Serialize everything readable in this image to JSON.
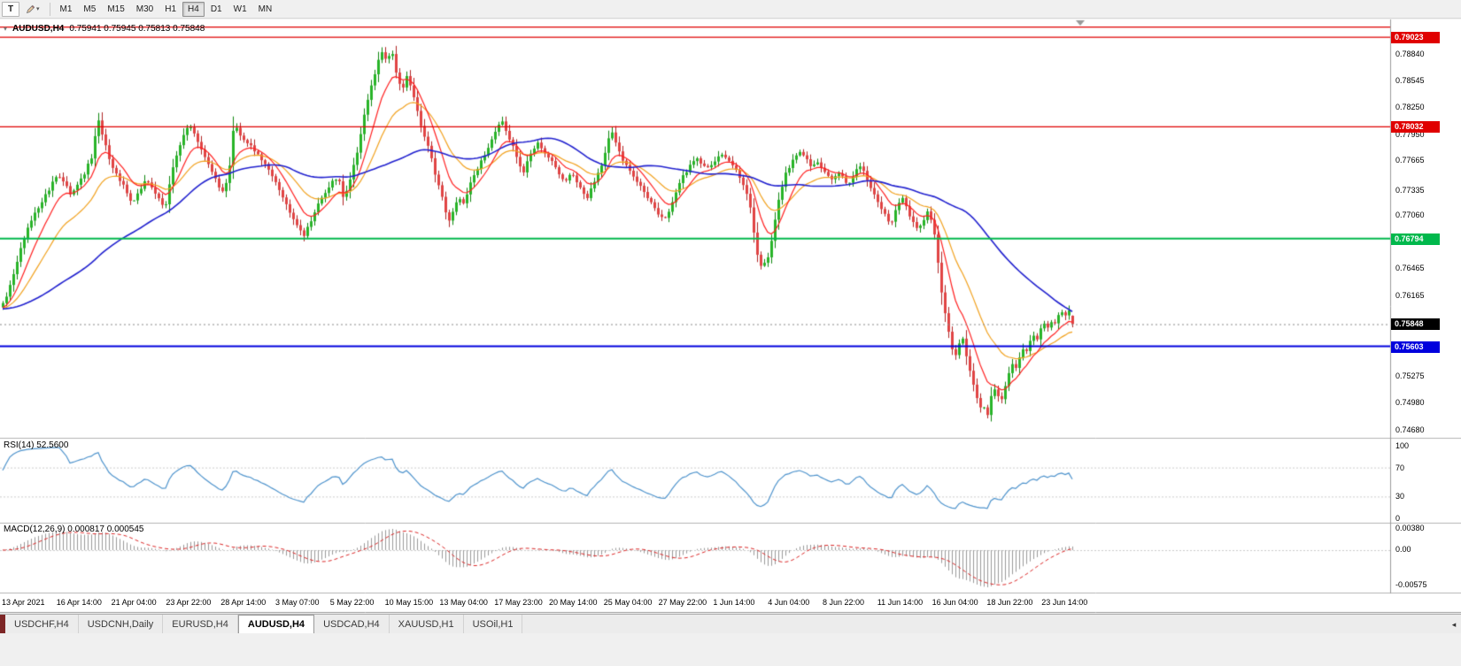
{
  "icons": {
    "dropdown_caret": "▾",
    "title_caret": "▾",
    "tab_scroll_right": "◂"
  },
  "toolbar": {
    "chart_tool_label": "T",
    "timeframes": [
      "M1",
      "M5",
      "M15",
      "M30",
      "H1",
      "H4",
      "D1",
      "W1",
      "MN"
    ],
    "active_timeframe": "H4"
  },
  "chart": {
    "symbol_period": "AUDUSD,H4",
    "ohlc": "0.75941 0.75945 0.75813 0.75848",
    "price_axis_labels": [
      "0.78840",
      "0.78545",
      "0.78250",
      "0.77950",
      "0.77665",
      "0.77335",
      "0.77060",
      "0.76770",
      "0.76465",
      "0.76165",
      "0.75870",
      "0.75575",
      "0.75275",
      "0.74980",
      "0.74680"
    ],
    "time_axis_labels": [
      "13 Apr 2021",
      "16 Apr 14:00",
      "21 Apr 04:00",
      "23 Apr 22:00",
      "28 Apr 14:00",
      "3 May 07:00",
      "5 May 22:00",
      "10 May 15:00",
      "13 May 04:00",
      "17 May 23:00",
      "20 May 14:00",
      "25 May 04:00",
      "27 May 22:00",
      "1 Jun 14:00",
      "4 Jun 04:00",
      "8 Jun 22:00",
      "11 Jun 14:00",
      "16 Jun 04:00",
      "18 Jun 22:00",
      "23 Jun 14:00"
    ],
    "hlines": [
      {
        "price": 0.79135,
        "color": "#e00000",
        "width": 1.2,
        "label": ""
      },
      {
        "price": 0.79023,
        "color": "#e00000",
        "width": 1.2,
        "label": "0.79023"
      },
      {
        "price": 0.78032,
        "color": "#e00000",
        "width": 1.2,
        "label": "0.78032"
      },
      {
        "price": 0.76794,
        "color": "#00b84c",
        "width": 2,
        "label": "0.76794"
      },
      {
        "price": 0.75603,
        "color": "#0000dd",
        "width": 2,
        "label": "0.75603"
      }
    ],
    "current_price": {
      "value": 0.75848,
      "label": "0.75848",
      "tag_color": "#000000"
    },
    "colors": {
      "up": "#28b428",
      "down": "#e14444",
      "ma_fast": "#ff2020",
      "ma_mid": "#f2a21f",
      "ma_slow": "#2121cf"
    }
  },
  "rsi": {
    "header": "RSI(14) 52.5600",
    "axis_labels": [
      "100",
      "70",
      "30",
      "0"
    ],
    "line_color": "#4f94cd"
  },
  "macd": {
    "header": "MACD(12,26,9) 0.000817 0.000545",
    "axis_labels": [
      "0.00380",
      "0.00",
      "-0.00575"
    ],
    "histogram_color": "#9a9a9a",
    "signal_color": "#dd2a2a"
  },
  "tabs": {
    "items": [
      "USDCHF,H4",
      "USDCNH,Daily",
      "EURUSD,H4",
      "AUDUSD,H4",
      "USDCAD,H4",
      "XAUUSD,H1",
      "USOil,H1"
    ],
    "active": "AUDUSD,H4"
  },
  "chart_data": {
    "type": "candlestick",
    "symbol": "AUDUSD",
    "period": "H4",
    "last_candle": {
      "open": 0.75941,
      "high": 0.75945,
      "low": 0.75813,
      "close": 0.75848
    },
    "price_scale": {
      "max": 0.7922,
      "min": 0.746
    },
    "levels": [
      0.79023,
      0.78032,
      0.76794,
      0.75603
    ],
    "indicators": [
      {
        "name": "RSI",
        "period": 14,
        "value": 52.56
      },
      {
        "name": "MACD",
        "fast": 12,
        "slow": 26,
        "signal": 9,
        "values": [
          0.000817,
          0.000545
        ]
      },
      {
        "name": "MovingAverages",
        "periods": [
          9,
          21,
          55
        ]
      }
    ],
    "price_path": [
      [
        0,
        0.7602
      ],
      [
        8,
        0.7618
      ],
      [
        16,
        0.7642
      ],
      [
        24,
        0.7672
      ],
      [
        32,
        0.7695
      ],
      [
        40,
        0.771
      ],
      [
        48,
        0.7722
      ],
      [
        56,
        0.7736
      ],
      [
        64,
        0.775
      ],
      [
        72,
        0.7741
      ],
      [
        80,
        0.7728
      ],
      [
        88,
        0.7739
      ],
      [
        96,
        0.7754
      ],
      [
        104,
        0.7772
      ],
      [
        110,
        0.7812
      ],
      [
        116,
        0.7792
      ],
      [
        124,
        0.7763
      ],
      [
        132,
        0.7749
      ],
      [
        140,
        0.7736
      ],
      [
        148,
        0.7718
      ],
      [
        156,
        0.7731
      ],
      [
        164,
        0.7743
      ],
      [
        172,
        0.7736
      ],
      [
        180,
        0.7722
      ],
      [
        186,
        0.7711
      ],
      [
        192,
        0.7746
      ],
      [
        198,
        0.7769
      ],
      [
        206,
        0.779
      ],
      [
        212,
        0.7806
      ],
      [
        220,
        0.7793
      ],
      [
        228,
        0.7776
      ],
      [
        236,
        0.7759
      ],
      [
        244,
        0.7743
      ],
      [
        252,
        0.7729
      ],
      [
        258,
        0.775
      ],
      [
        264,
        0.7809
      ],
      [
        270,
        0.7796
      ],
      [
        278,
        0.7786
      ],
      [
        286,
        0.7779
      ],
      [
        294,
        0.7769
      ],
      [
        302,
        0.7756
      ],
      [
        310,
        0.7743
      ],
      [
        318,
        0.7729
      ],
      [
        326,
        0.7711
      ],
      [
        334,
        0.7696
      ],
      [
        342,
        0.7682
      ],
      [
        350,
        0.7696
      ],
      [
        358,
        0.7716
      ],
      [
        366,
        0.7729
      ],
      [
        374,
        0.7741
      ],
      [
        382,
        0.7748
      ],
      [
        388,
        0.7722
      ],
      [
        394,
        0.7741
      ],
      [
        400,
        0.7763
      ],
      [
        406,
        0.7789
      ],
      [
        412,
        0.7821
      ],
      [
        418,
        0.7846
      ],
      [
        424,
        0.7866
      ],
      [
        430,
        0.7886
      ],
      [
        436,
        0.7876
      ],
      [
        442,
        0.7888
      ],
      [
        448,
        0.7858
      ],
      [
        454,
        0.7842
      ],
      [
        458,
        0.7861
      ],
      [
        464,
        0.7846
      ],
      [
        470,
        0.7823
      ],
      [
        476,
        0.7801
      ],
      [
        482,
        0.7786
      ],
      [
        488,
        0.7763
      ],
      [
        494,
        0.7741
      ],
      [
        500,
        0.7722
      ],
      [
        506,
        0.7697
      ],
      [
        512,
        0.7712
      ],
      [
        518,
        0.7726
      ],
      [
        524,
        0.7717
      ],
      [
        530,
        0.7739
      ],
      [
        536,
        0.7753
      ],
      [
        542,
        0.7763
      ],
      [
        548,
        0.7773
      ],
      [
        554,
        0.7786
      ],
      [
        560,
        0.7799
      ],
      [
        566,
        0.7812
      ],
      [
        572,
        0.7797
      ],
      [
        578,
        0.7783
      ],
      [
        584,
        0.7768
      ],
      [
        590,
        0.7751
      ],
      [
        596,
        0.7766
      ],
      [
        602,
        0.7779
      ],
      [
        608,
        0.7786
      ],
      [
        614,
        0.7776
      ],
      [
        620,
        0.7769
      ],
      [
        626,
        0.7759
      ],
      [
        632,
        0.7749
      ],
      [
        638,
        0.7741
      ],
      [
        644,
        0.7753
      ],
      [
        650,
        0.7743
      ],
      [
        656,
        0.7733
      ],
      [
        662,
        0.7722
      ],
      [
        668,
        0.7736
      ],
      [
        674,
        0.7749
      ],
      [
        680,
        0.7761
      ],
      [
        686,
        0.7786
      ],
      [
        690,
        0.7799
      ],
      [
        696,
        0.7783
      ],
      [
        702,
        0.7769
      ],
      [
        708,
        0.7759
      ],
      [
        714,
        0.7749
      ],
      [
        720,
        0.7741
      ],
      [
        726,
        0.7733
      ],
      [
        732,
        0.7723
      ],
      [
        738,
        0.7716
      ],
      [
        744,
        0.7706
      ],
      [
        750,
        0.7699
      ],
      [
        756,
        0.7713
      ],
      [
        762,
        0.7729
      ],
      [
        768,
        0.7743
      ],
      [
        774,
        0.7753
      ],
      [
        780,
        0.7761
      ],
      [
        786,
        0.7769
      ],
      [
        792,
        0.7763
      ],
      [
        798,
        0.7756
      ],
      [
        804,
        0.7763
      ],
      [
        810,
        0.7769
      ],
      [
        816,
        0.7773
      ],
      [
        822,
        0.7766
      ],
      [
        828,
        0.7759
      ],
      [
        834,
        0.7749
      ],
      [
        840,
        0.7736
      ],
      [
        846,
        0.7721
      ],
      [
        852,
        0.7681
      ],
      [
        856,
        0.7653
      ],
      [
        862,
        0.7649
      ],
      [
        868,
        0.7661
      ],
      [
        874,
        0.7696
      ],
      [
        880,
        0.7726
      ],
      [
        886,
        0.7749
      ],
      [
        892,
        0.7761
      ],
      [
        898,
        0.7769
      ],
      [
        904,
        0.7776
      ],
      [
        910,
        0.7769
      ],
      [
        916,
        0.7759
      ],
      [
        922,
        0.7766
      ],
      [
        928,
        0.7756
      ],
      [
        934,
        0.7749
      ],
      [
        940,
        0.7743
      ],
      [
        946,
        0.7753
      ],
      [
        952,
        0.7746
      ],
      [
        958,
        0.7739
      ],
      [
        964,
        0.7749
      ],
      [
        970,
        0.7761
      ],
      [
        976,
        0.7752
      ],
      [
        982,
        0.7738
      ],
      [
        988,
        0.7725
      ],
      [
        994,
        0.7715
      ],
      [
        1000,
        0.7705
      ],
      [
        1006,
        0.7695
      ],
      [
        1012,
        0.7715
      ],
      [
        1018,
        0.7725
      ],
      [
        1024,
        0.7712
      ],
      [
        1030,
        0.7698
      ],
      [
        1036,
        0.7688
      ],
      [
        1042,
        0.77
      ],
      [
        1048,
        0.771
      ],
      [
        1054,
        0.7694
      ],
      [
        1058,
        0.7661
      ],
      [
        1062,
        0.7626
      ],
      [
        1066,
        0.7601
      ],
      [
        1070,
        0.7581
      ],
      [
        1074,
        0.7561
      ],
      [
        1078,
        0.7546
      ],
      [
        1082,
        0.7559
      ],
      [
        1086,
        0.7572
      ],
      [
        1090,
        0.7556
      ],
      [
        1094,
        0.7536
      ],
      [
        1098,
        0.7521
      ],
      [
        1102,
        0.7506
      ],
      [
        1106,
        0.749
      ],
      [
        1110,
        0.7499
      ],
      [
        1114,
        0.7479
      ],
      [
        1118,
        0.7503
      ],
      [
        1122,
        0.7516
      ],
      [
        1126,
        0.7506
      ],
      [
        1130,
        0.7496
      ],
      [
        1134,
        0.7513
      ],
      [
        1138,
        0.7529
      ],
      [
        1142,
        0.7541
      ],
      [
        1146,
        0.7533
      ],
      [
        1150,
        0.7546
      ],
      [
        1154,
        0.7559
      ],
      [
        1158,
        0.7553
      ],
      [
        1162,
        0.7563
      ],
      [
        1166,
        0.7573
      ],
      [
        1170,
        0.7566
      ],
      [
        1174,
        0.7576
      ],
      [
        1178,
        0.7586
      ],
      [
        1182,
        0.7579
      ],
      [
        1186,
        0.7589
      ],
      [
        1190,
        0.7583
      ],
      [
        1194,
        0.7593
      ],
      [
        1198,
        0.7601
      ],
      [
        1202,
        0.7593
      ],
      [
        1206,
        0.7604
      ],
      [
        1210,
        0.7592
      ],
      [
        1213,
        0.75848
      ]
    ]
  }
}
